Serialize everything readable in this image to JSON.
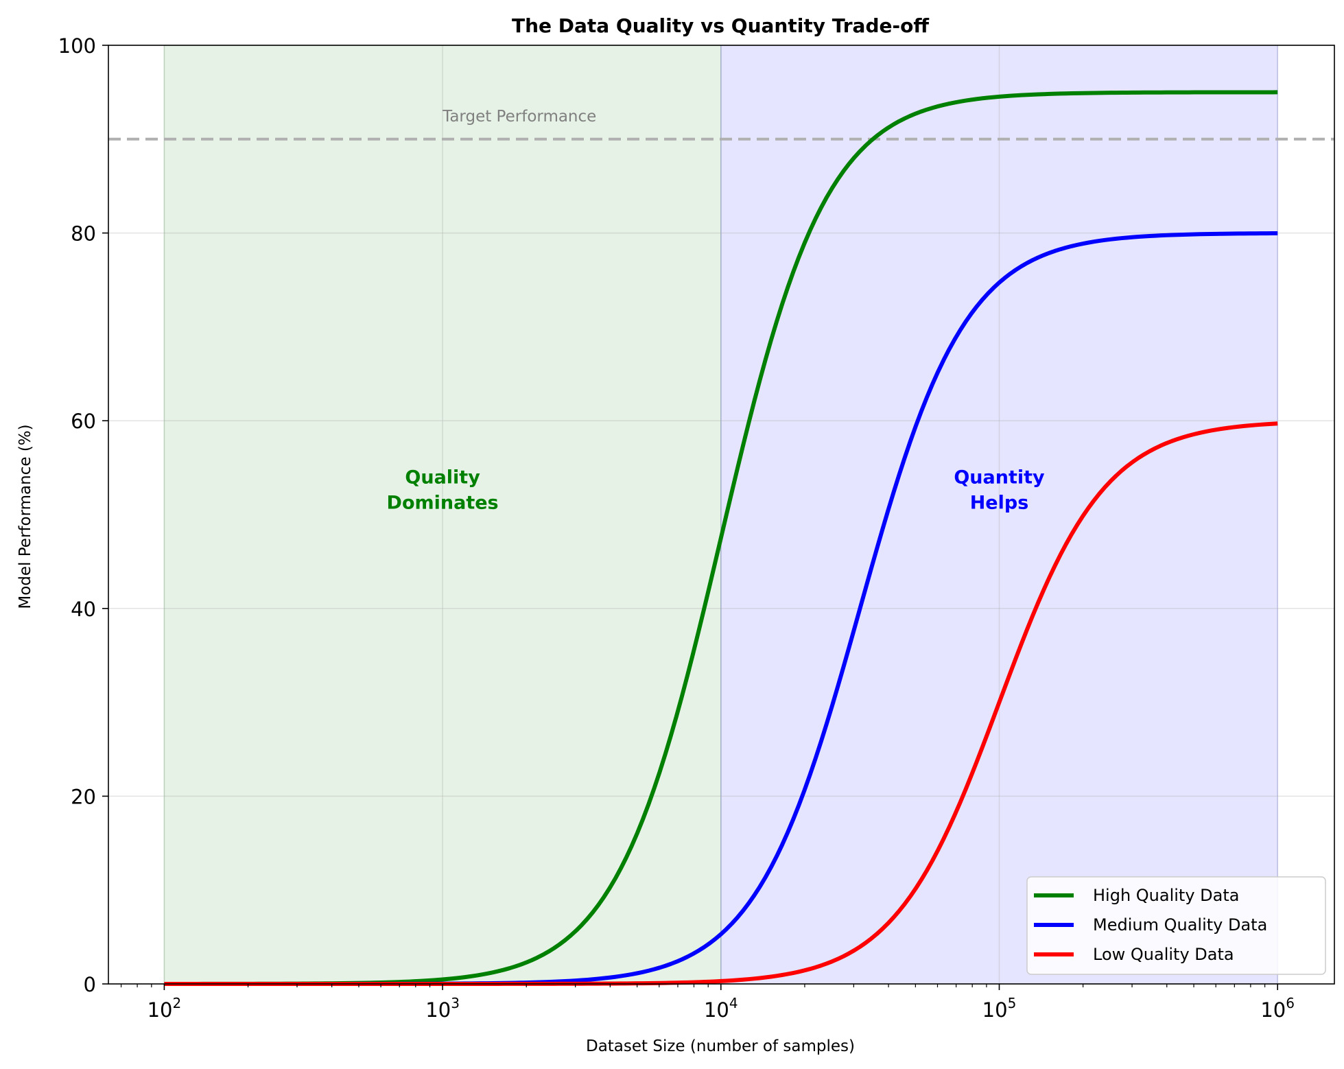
{
  "chart_data": {
    "type": "line",
    "title": "The Data Quality vs Quantity Trade-off",
    "xlabel": "Dataset Size (number of samples)",
    "ylabel": "Model Performance (%)",
    "x_scale": "log",
    "xlim": [
      63,
      1600000
    ],
    "ylim": [
      0,
      100
    ],
    "x_ticks": [
      {
        "value": 100,
        "base": "10",
        "exp": "2"
      },
      {
        "value": 1000,
        "base": "10",
        "exp": "3"
      },
      {
        "value": 10000,
        "base": "10",
        "exp": "4"
      },
      {
        "value": 100000,
        "base": "10",
        "exp": "5"
      },
      {
        "value": 1000000,
        "base": "10",
        "exp": "6"
      }
    ],
    "y_ticks": [
      {
        "value": 0,
        "label": "0"
      },
      {
        "value": 20,
        "label": "20"
      },
      {
        "value": 40,
        "label": "40"
      },
      {
        "value": 60,
        "label": "60"
      },
      {
        "value": 80,
        "label": "80"
      },
      {
        "value": 100,
        "label": "100"
      }
    ],
    "grid": true,
    "legend_position": "lower-right",
    "regions": [
      {
        "x_from": 100,
        "x_to": 10000,
        "color": "#008000",
        "opacity": 0.1
      },
      {
        "x_from": 10000,
        "x_to": 1000000,
        "color": "#0000ff",
        "opacity": 0.1
      }
    ],
    "reference_line": {
      "y": 90,
      "label": "Target Performance",
      "color": "#b0b0b0"
    },
    "annotations": [
      {
        "text_lines": [
          "Quality",
          "Dominates"
        ],
        "x": 1000,
        "y": 52,
        "color": "#008000"
      },
      {
        "text_lines": [
          "Quantity",
          "Helps"
        ],
        "x": 100000,
        "y": 52,
        "color": "#0000ff"
      }
    ],
    "series": [
      {
        "name": "High Quality Data",
        "color": "#008000",
        "max": 95,
        "midpoint": 10000,
        "steepness": 2.3
      },
      {
        "name": "Medium Quality Data",
        "color": "#0000ff",
        "max": 80,
        "midpoint": 31600,
        "steepness": 2.3
      },
      {
        "name": "Low Quality Data",
        "color": "#ff0000",
        "max": 60,
        "midpoint": 100000,
        "steepness": 2.3
      }
    ],
    "x_sample_range": [
      100,
      1000000
    ]
  }
}
